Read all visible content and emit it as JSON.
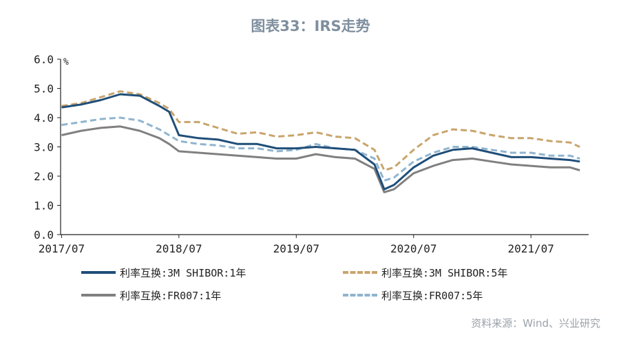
{
  "chart_data": {
    "type": "line",
    "title": "图表33：IRS走势",
    "unit": "%",
    "ylim": [
      0.0,
      6.0
    ],
    "y_ticks": [
      "0.0",
      "1.0",
      "2.0",
      "3.0",
      "4.0",
      "5.0",
      "6.0"
    ],
    "x_ticks": [
      "2017/07",
      "2018/07",
      "2019/07",
      "2020/07",
      "2021/07"
    ],
    "x_range": [
      "2017/07",
      "2021/12"
    ],
    "grid": false,
    "legend_position": "bottom",
    "source": "资料来源：Wind、兴业研究",
    "x": [
      "2017/07",
      "2017/09",
      "2017/11",
      "2018/01",
      "2018/03",
      "2018/05",
      "2018/06",
      "2018/07",
      "2018/09",
      "2018/11",
      "2019/01",
      "2019/03",
      "2019/05",
      "2019/07",
      "2019/09",
      "2019/11",
      "2020/01",
      "2020/03",
      "2020/04",
      "2020/05",
      "2020/07",
      "2020/09",
      "2020/11",
      "2021/01",
      "2021/03",
      "2021/05",
      "2021/07",
      "2021/09",
      "2021/11",
      "2021/12"
    ],
    "series": [
      {
        "name": "利率互换:3M SHIBOR:1年",
        "color": "#1f4e79",
        "dash": "solid",
        "values": [
          4.35,
          4.45,
          4.6,
          4.8,
          4.75,
          4.4,
          4.2,
          3.4,
          3.3,
          3.25,
          3.1,
          3.1,
          2.95,
          2.95,
          3.0,
          2.95,
          2.9,
          2.4,
          1.55,
          1.7,
          2.3,
          2.7,
          2.9,
          2.95,
          2.8,
          2.65,
          2.65,
          2.6,
          2.55,
          2.5
        ]
      },
      {
        "name": "利率互换:3M SHIBOR:5年",
        "color": "#c9a46b",
        "dash": "dashed",
        "values": [
          4.4,
          4.5,
          4.7,
          4.9,
          4.8,
          4.5,
          4.3,
          3.85,
          3.85,
          3.65,
          3.45,
          3.5,
          3.35,
          3.4,
          3.5,
          3.35,
          3.3,
          2.9,
          2.2,
          2.3,
          2.9,
          3.4,
          3.6,
          3.55,
          3.4,
          3.3,
          3.3,
          3.2,
          3.15,
          3.0
        ]
      },
      {
        "name": "利率互换:FR007:1年",
        "color": "#808080",
        "dash": "solid",
        "values": [
          3.4,
          3.55,
          3.65,
          3.7,
          3.55,
          3.3,
          3.1,
          2.85,
          2.8,
          2.75,
          2.7,
          2.65,
          2.6,
          2.6,
          2.75,
          2.65,
          2.6,
          2.25,
          1.45,
          1.55,
          2.1,
          2.35,
          2.55,
          2.6,
          2.5,
          2.4,
          2.35,
          2.3,
          2.3,
          2.2
        ]
      },
      {
        "name": "利率互换:FR007:5年",
        "color": "#8fb4cf",
        "dash": "dashed",
        "values": [
          3.75,
          3.85,
          3.95,
          4.0,
          3.9,
          3.6,
          3.4,
          3.2,
          3.1,
          3.05,
          2.95,
          2.95,
          2.85,
          2.9,
          3.1,
          2.95,
          2.9,
          2.6,
          1.85,
          1.95,
          2.5,
          2.8,
          3.0,
          3.0,
          2.9,
          2.8,
          2.8,
          2.7,
          2.7,
          2.6
        ]
      }
    ]
  }
}
